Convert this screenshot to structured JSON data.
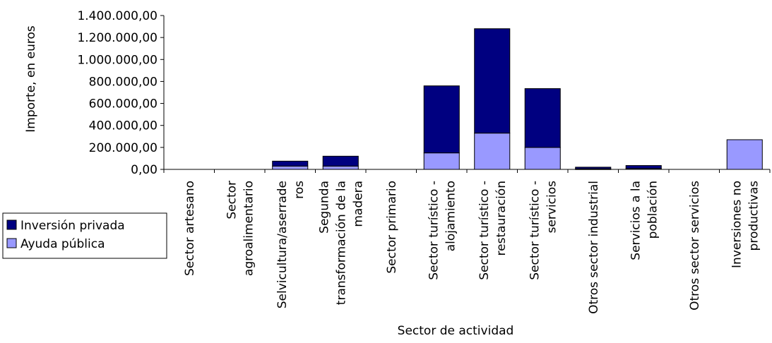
{
  "chart_data": {
    "type": "bar",
    "stacked": true,
    "xlabel": "Sector de actividad",
    "ylabel": "Importe, en euros",
    "ylim": [
      0,
      1400000
    ],
    "ytick_step": 200000,
    "ytick_labels": [
      "0,00",
      "200.000,00",
      "400.000,00",
      "600.000,00",
      "800.000,00",
      "1.000.000,00",
      "1.200.000,00",
      "1.400.000,00"
    ],
    "grid": false,
    "legend_position": "left",
    "categories": [
      [
        "Sector artesano"
      ],
      [
        "Sector",
        "agroalimentario"
      ],
      [
        "Selvicultura/aserrade",
        "ros"
      ],
      [
        "Segunda",
        "transformación de la",
        "madera"
      ],
      [
        "Sector primario"
      ],
      [
        "Sector turístico -",
        "alojamiento"
      ],
      [
        "Sector turístico -",
        "restauración"
      ],
      [
        "Sector turístico -",
        "servicios"
      ],
      [
        "Otros sector industrial"
      ],
      [
        "Servicios a la",
        "población"
      ],
      [
        "Otros sector servicios"
      ],
      [
        "Inversiones no",
        "productivas"
      ]
    ],
    "series": [
      {
        "name": "Ayuda pública",
        "color": "#9999ff",
        "values": [
          0,
          0,
          30000,
          30000,
          0,
          150000,
          330000,
          200000,
          5000,
          8000,
          0,
          270000
        ]
      },
      {
        "name": "Inversión privada",
        "color": "#000080",
        "values": [
          0,
          0,
          45000,
          90000,
          0,
          610000,
          950000,
          535000,
          15000,
          27000,
          0,
          0
        ]
      }
    ]
  }
}
